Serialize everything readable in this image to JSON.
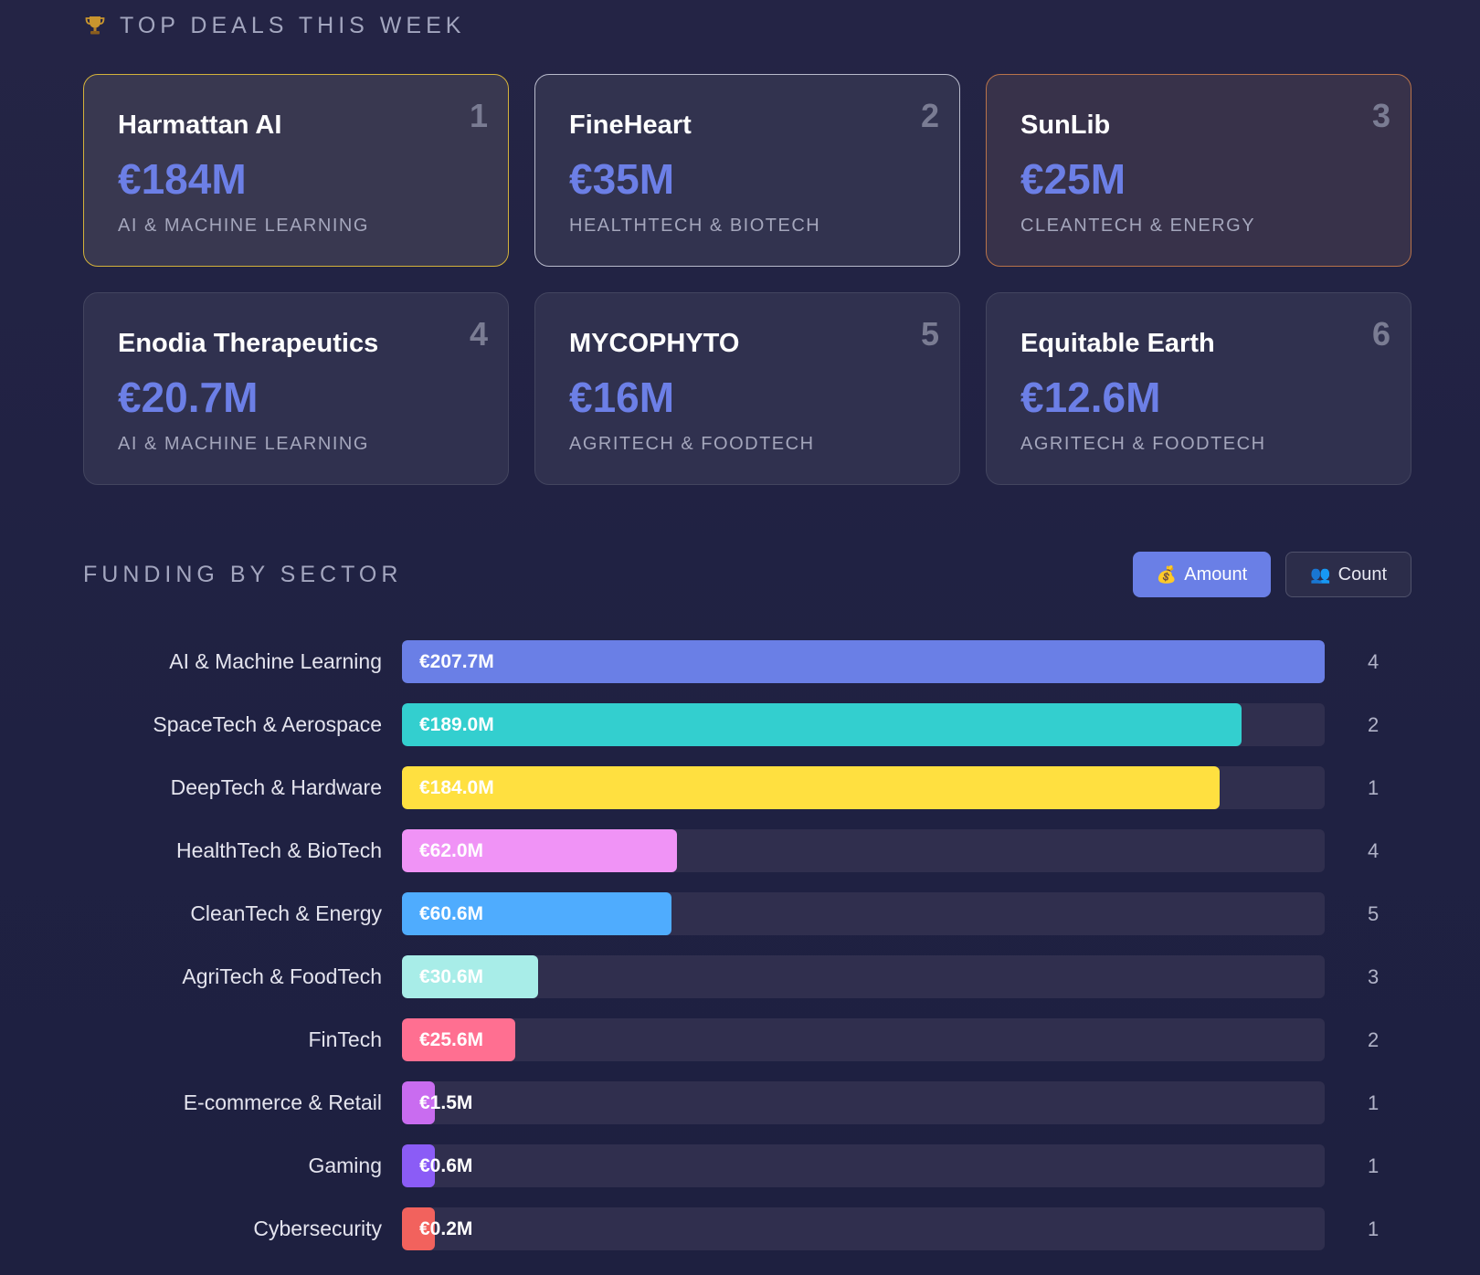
{
  "top_deals": {
    "title": "TOP DEALS THIS WEEK",
    "icon": "trophy-icon",
    "deals": [
      {
        "rank": "1",
        "name": "Harmattan AI",
        "amount": "€184M",
        "sector": "AI & MACHINE LEARNING"
      },
      {
        "rank": "2",
        "name": "FineHeart",
        "amount": "€35M",
        "sector": "HEALTHTECH & BIOTECH"
      },
      {
        "rank": "3",
        "name": "SunLib",
        "amount": "€25M",
        "sector": "CLEANTECH & ENERGY"
      },
      {
        "rank": "4",
        "name": "Enodia Therapeutics",
        "amount": "€20.7M",
        "sector": "AI & MACHINE LEARNING"
      },
      {
        "rank": "5",
        "name": "MYCOPHYTO",
        "amount": "€16M",
        "sector": "AGRITECH & FOODTECH"
      },
      {
        "rank": "6",
        "name": "Equitable Earth",
        "amount": "€12.6M",
        "sector": "AGRITECH & FOODTECH"
      }
    ]
  },
  "funding_by_sector": {
    "title": "FUNDING BY SECTOR",
    "toggles": {
      "amount_label": "Amount",
      "amount_icon": "💰",
      "count_label": "Count",
      "count_icon": "👥",
      "selected": "Amount"
    }
  },
  "chart_data": {
    "type": "bar",
    "orientation": "horizontal",
    "categories": [
      "AI & Machine Learning",
      "SpaceTech & Aerospace",
      "DeepTech & Hardware",
      "HealthTech & BioTech",
      "CleanTech & Energy",
      "AgriTech & FoodTech",
      "FinTech",
      "E-commerce & Retail",
      "Gaming",
      "Cybersecurity"
    ],
    "values": [
      207.7,
      189.0,
      184.0,
      62.0,
      60.6,
      30.6,
      25.6,
      1.5,
      0.6,
      0.2
    ],
    "value_labels": [
      "€207.7M",
      "€189.0M",
      "€184.0M",
      "€62.0M",
      "€60.6M",
      "€30.6M",
      "€25.6M",
      "€1.5M",
      "€0.6M",
      "€0.2M"
    ],
    "counts": [
      "4",
      "2",
      "1",
      "4",
      "5",
      "3",
      "2",
      "1",
      "1",
      "1"
    ],
    "colors": [
      "#6a7fe6",
      "#33cfcf",
      "#ffe040",
      "#f093f6",
      "#4facfe",
      "#a8ede8",
      "#ff6f91",
      "#c96cf0",
      "#8b5cf6",
      "#f2625d"
    ],
    "xlim": [
      0,
      207.7
    ]
  }
}
